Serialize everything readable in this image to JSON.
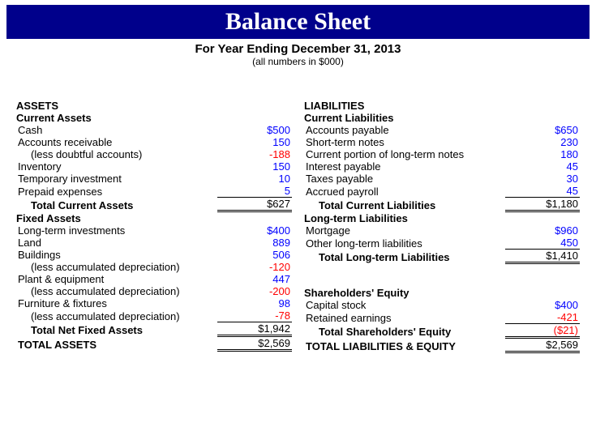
{
  "header": {
    "title": "Balance Sheet",
    "subtitle": "For Year Ending December 31, 2013",
    "note": "(all numbers in $000)",
    "title_bg": "#00008b",
    "title_color": "#ffffff",
    "title_fontsize": 30
  },
  "colors": {
    "positive": "#0000ff",
    "negative": "#ff0000",
    "text": "#000000",
    "background": "#ffffff"
  },
  "left": {
    "section": "ASSETS",
    "currentAssets": {
      "title": "Current Assets",
      "cash_label": "Cash",
      "cash": "$500",
      "ar_label": "Accounts receivable",
      "ar": "150",
      "doubtful_label": "(less doubtful accounts)",
      "doubtful": "-188",
      "inventory_label": "Inventory",
      "inventory": "150",
      "tempinv_label": "Temporary investment",
      "tempinv": "10",
      "prepaid_label": "Prepaid expenses",
      "prepaid": "5",
      "total_label": "Total Current Assets",
      "total": "$627"
    },
    "fixedAssets": {
      "title": "Fixed Assets",
      "lti_label": "Long-term investments",
      "lti": "$400",
      "land_label": "Land",
      "land": "889",
      "buildings_label": "Buildings",
      "buildings": "506",
      "bdep_label": "(less accumulated depreciation)",
      "bdep": "-120",
      "plant_label": "Plant & equipment",
      "plant": "447",
      "pdep_label": "(less accumulated depreciation)",
      "pdep": "-200",
      "furn_label": "Furniture & fixtures",
      "furn": "98",
      "fdep_label": "(less accumulated depreciation)",
      "fdep": "-78",
      "total_label": "Total Net Fixed Assets",
      "total": "$1,942"
    },
    "totalAssets_label": "TOTAL ASSETS",
    "totalAssets": "$2,569"
  },
  "right": {
    "section": "LIABILITIES",
    "currentLiab": {
      "title": "Current Liabilities",
      "ap_label": "Accounts payable",
      "ap": "$650",
      "stn_label": "Short-term notes",
      "stn": "230",
      "cpltn_label": "Current portion of long-term notes",
      "cpltn": "180",
      "int_label": "Interest payable",
      "int": "45",
      "tax_label": "Taxes payable",
      "tax": "30",
      "payroll_label": "Accrued payroll",
      "payroll": "45",
      "total_label": "Total Current Liabilities",
      "total": "$1,180"
    },
    "longLiab": {
      "title": "Long-term Liabilities",
      "mort_label": "Mortgage",
      "mort": "$960",
      "other_label": "Other long-term liabilities",
      "other": "450",
      "total_label": "Total Long-term Liabilities",
      "total": "$1,410"
    },
    "equity": {
      "title": "Shareholders' Equity",
      "capital_label": "Capital stock",
      "capital": "$400",
      "retained_label": "Retained earnings",
      "retained": "-421",
      "total_label": "Total Shareholders' Equity",
      "total": "($21)"
    },
    "totalLE_label": "TOTAL LIABILITIES & EQUITY",
    "totalLE": "$2,569"
  }
}
